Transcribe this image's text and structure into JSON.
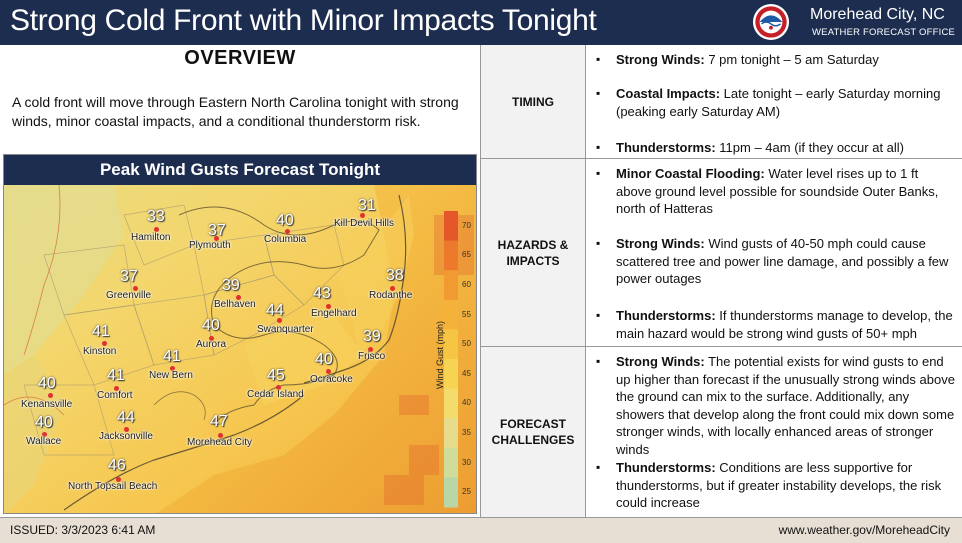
{
  "header": {
    "title": "Strong Cold Front with Minor Impacts Tonight",
    "office_name": "Morehead City, NC",
    "office_sub": "WEATHER FORECAST OFFICE"
  },
  "overview": {
    "title": "OVERVIEW",
    "text": "A cold front will move through Eastern North Carolina tonight with strong winds, minor coastal impacts, and a conditional thunderstorm risk."
  },
  "map": {
    "title": "Peak Wind Gusts Forecast Tonight",
    "legend_title": "Wind Gust (mph)",
    "legend_ticks": [
      "70",
      "65",
      "60",
      "55",
      "50",
      "45",
      "40",
      "35",
      "30",
      "25"
    ],
    "legend_colors": [
      "#e5572a",
      "#ed7a2c",
      "#f29a32",
      "#f5b23a",
      "#f7c544",
      "#f7d353",
      "#f4dc6c",
      "#e6dc8c",
      "#cfdc9a",
      "#b9d6a6"
    ],
    "cities": [
      {
        "name": "Hamilton",
        "gust": "33"
      },
      {
        "name": "Plymouth",
        "gust": "37"
      },
      {
        "name": "Columbia",
        "gust": "40"
      },
      {
        "name": "Kill Devil Hills",
        "gust": "31"
      },
      {
        "name": "Greenville",
        "gust": "37"
      },
      {
        "name": "Belhaven",
        "gust": "39"
      },
      {
        "name": "Rodanthe",
        "gust": "38"
      },
      {
        "name": "Engelhard",
        "gust": "43"
      },
      {
        "name": "Swanquarter",
        "gust": "44"
      },
      {
        "name": "Kinston",
        "gust": "41"
      },
      {
        "name": "Aurora",
        "gust": "40"
      },
      {
        "name": "Frisco",
        "gust": "39"
      },
      {
        "name": "New Bern",
        "gust": "41"
      },
      {
        "name": "Ocracoke",
        "gust": "40"
      },
      {
        "name": "Kenansville",
        "gust": "40"
      },
      {
        "name": "Comfort",
        "gust": "41"
      },
      {
        "name": "Cedar Island",
        "gust": "45"
      },
      {
        "name": "Wallace",
        "gust": "40"
      },
      {
        "name": "Jacksonville",
        "gust": "44"
      },
      {
        "name": "Morehead City",
        "gust": "47"
      },
      {
        "name": "North Topsail Beach",
        "gust": "46"
      }
    ]
  },
  "table": {
    "rows": [
      {
        "label": "TIMING",
        "bullets": [
          {
            "bold": "Strong Winds:",
            "text": " 7 pm tonight – 5 am Saturday"
          },
          {
            "bold": "Coastal Impacts:",
            "text": " Late tonight – early Saturday morning (peaking early Saturday AM)"
          },
          {
            "bold": "Thunderstorms:",
            "text": " 11pm – 4am (if they occur at all)"
          }
        ]
      },
      {
        "label": "HAZARDS & IMPACTS",
        "bullets": [
          {
            "bold": "Minor Coastal Flooding:",
            "text": " Water level rises up to 1 ft above ground level possible for soundside Outer Banks, north of Hatteras"
          },
          {
            "bold": "Strong Winds:",
            "text": " Wind gusts of 40-50 mph could cause scattered tree and power line damage, and possibly a few power outages"
          },
          {
            "bold": "Thunderstorms:",
            "text": " If thunderstorms manage to develop, the main hazard would be strong wind gusts of 50+ mph"
          }
        ]
      },
      {
        "label": "FORECAST CHALLENGES",
        "bullets": [
          {
            "bold": "Strong Winds:",
            "text": " The potential exists for wind gusts to end up higher than forecast if the unusually strong winds above the ground can mix to the surface. Additionally, any showers that develop along the front could mix down some stronger winds, with locally enhanced areas of stronger winds"
          },
          {
            "bold": "Thunderstorms:",
            "text": " Conditions are less supportive for thunderstorms, but if greater instability develops, the risk could increase"
          }
        ]
      }
    ]
  },
  "footer": {
    "issued": "ISSUED: 3/3/2023 6:41 AM",
    "website": "www.weather.gov/MoreheadCity"
  }
}
